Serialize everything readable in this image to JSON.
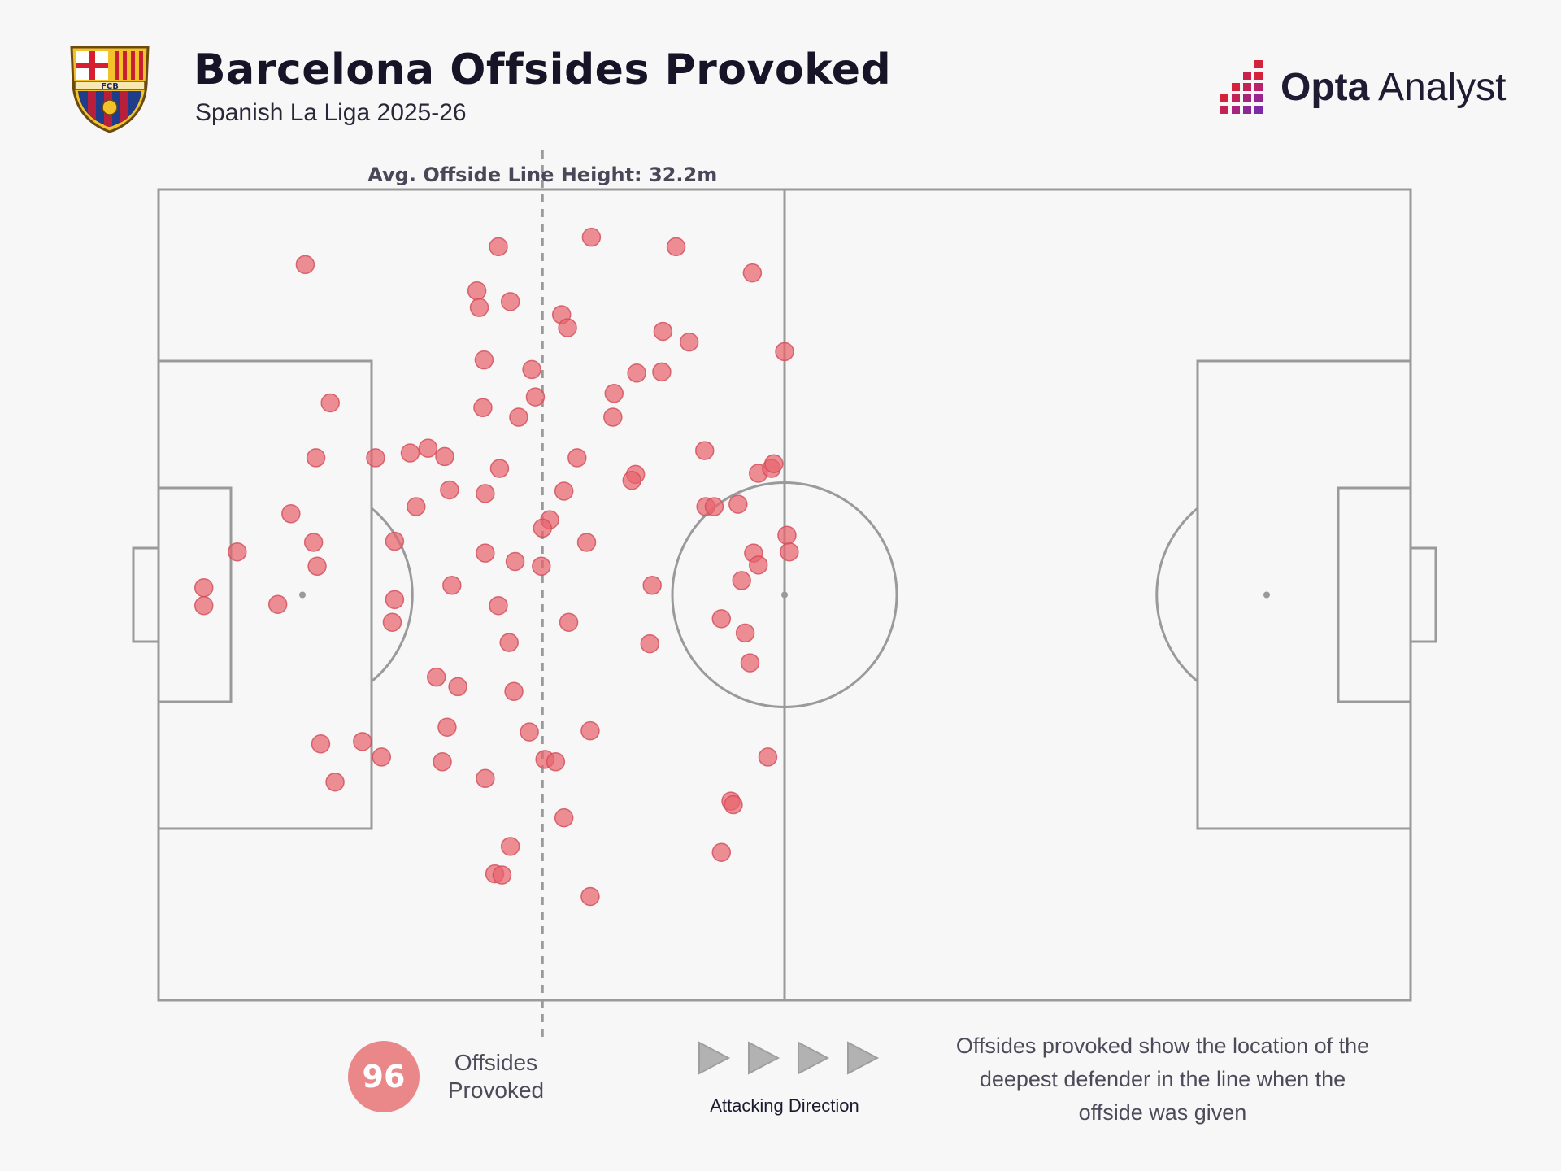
{
  "header": {
    "title": "Barcelona Offsides Provoked",
    "subtitle": "Spanish La Liga 2025-26",
    "crest_initials": "FCB",
    "brand_strong": "Opta",
    "brand_light": " Analyst"
  },
  "colors": {
    "marker": "#e8646e",
    "marker_stroke": "#d24b58",
    "pitch_line": "#9a9a9a",
    "badge": "#e98789",
    "arrow": "#b2b2b2"
  },
  "chart_data": {
    "type": "scatter",
    "title": "Barcelona Offsides Provoked",
    "subtitle": "Spanish La Liga 2025-26",
    "pitch_length_m": 105,
    "pitch_width_m": 68,
    "x_unit": "metres from own goal line",
    "y_unit": "metres from top touchline",
    "xlim": [
      0,
      105
    ],
    "ylim": [
      0,
      68
    ],
    "avg_line": {
      "x": 32.2,
      "label": "Avg. Offside Line Height: 32.2m"
    },
    "total": 96,
    "total_label": "Offsides Provoked",
    "direction_label": "Attacking Direction",
    "note": "Offsides provoked show the location of the deepest defender in the line when the offside was given",
    "points": [
      {
        "x": 12.3,
        "y": 6.3
      },
      {
        "x": 28.5,
        "y": 4.8
      },
      {
        "x": 36.3,
        "y": 4.0
      },
      {
        "x": 43.4,
        "y": 4.8
      },
      {
        "x": 49.8,
        "y": 7.0
      },
      {
        "x": 26.7,
        "y": 8.5
      },
      {
        "x": 29.5,
        "y": 9.4
      },
      {
        "x": 26.9,
        "y": 9.9
      },
      {
        "x": 33.8,
        "y": 10.5
      },
      {
        "x": 34.3,
        "y": 11.6
      },
      {
        "x": 42.3,
        "y": 11.9
      },
      {
        "x": 44.5,
        "y": 12.8
      },
      {
        "x": 52.5,
        "y": 13.6
      },
      {
        "x": 27.3,
        "y": 14.3
      },
      {
        "x": 31.3,
        "y": 15.1
      },
      {
        "x": 42.2,
        "y": 15.3
      },
      {
        "x": 40.1,
        "y": 15.4
      },
      {
        "x": 14.4,
        "y": 17.9
      },
      {
        "x": 31.6,
        "y": 17.4
      },
      {
        "x": 38.2,
        "y": 17.1
      },
      {
        "x": 27.2,
        "y": 18.3
      },
      {
        "x": 30.2,
        "y": 19.1
      },
      {
        "x": 38.1,
        "y": 19.1
      },
      {
        "x": 13.2,
        "y": 22.5
      },
      {
        "x": 18.2,
        "y": 22.5
      },
      {
        "x": 21.1,
        "y": 22.1
      },
      {
        "x": 22.6,
        "y": 21.7
      },
      {
        "x": 24.0,
        "y": 22.4
      },
      {
        "x": 28.6,
        "y": 23.4
      },
      {
        "x": 35.1,
        "y": 22.5
      },
      {
        "x": 45.8,
        "y": 21.9
      },
      {
        "x": 50.3,
        "y": 23.8
      },
      {
        "x": 51.4,
        "y": 23.4
      },
      {
        "x": 51.6,
        "y": 23.0
      },
      {
        "x": 40.0,
        "y": 23.9
      },
      {
        "x": 39.7,
        "y": 24.4
      },
      {
        "x": 24.4,
        "y": 25.2
      },
      {
        "x": 27.4,
        "y": 25.5
      },
      {
        "x": 34.0,
        "y": 25.3
      },
      {
        "x": 21.6,
        "y": 26.6
      },
      {
        "x": 11.1,
        "y": 27.2
      },
      {
        "x": 32.8,
        "y": 27.7
      },
      {
        "x": 45.9,
        "y": 26.6
      },
      {
        "x": 46.6,
        "y": 26.6
      },
      {
        "x": 48.6,
        "y": 26.4
      },
      {
        "x": 32.2,
        "y": 28.4
      },
      {
        "x": 19.8,
        "y": 29.5
      },
      {
        "x": 13.0,
        "y": 29.6
      },
      {
        "x": 35.9,
        "y": 29.6
      },
      {
        "x": 52.7,
        "y": 29.0
      },
      {
        "x": 52.9,
        "y": 30.4
      },
      {
        "x": 6.6,
        "y": 30.4
      },
      {
        "x": 27.4,
        "y": 30.5
      },
      {
        "x": 49.9,
        "y": 30.5
      },
      {
        "x": 13.3,
        "y": 31.6
      },
      {
        "x": 29.9,
        "y": 31.2
      },
      {
        "x": 32.1,
        "y": 31.6
      },
      {
        "x": 50.3,
        "y": 31.5
      },
      {
        "x": 3.8,
        "y": 33.4
      },
      {
        "x": 24.6,
        "y": 33.2
      },
      {
        "x": 41.4,
        "y": 33.2
      },
      {
        "x": 48.9,
        "y": 32.8
      },
      {
        "x": 19.8,
        "y": 34.4
      },
      {
        "x": 3.8,
        "y": 34.9
      },
      {
        "x": 10.0,
        "y": 34.8
      },
      {
        "x": 28.5,
        "y": 34.9
      },
      {
        "x": 19.6,
        "y": 36.3
      },
      {
        "x": 34.4,
        "y": 36.3
      },
      {
        "x": 47.2,
        "y": 36.0
      },
      {
        "x": 49.2,
        "y": 37.2
      },
      {
        "x": 29.4,
        "y": 38.0
      },
      {
        "x": 41.2,
        "y": 38.1
      },
      {
        "x": 49.6,
        "y": 39.7
      },
      {
        "x": 23.3,
        "y": 40.9
      },
      {
        "x": 25.1,
        "y": 41.7
      },
      {
        "x": 29.8,
        "y": 42.1
      },
      {
        "x": 24.2,
        "y": 45.1
      },
      {
        "x": 31.1,
        "y": 45.5
      },
      {
        "x": 36.2,
        "y": 45.4
      },
      {
        "x": 13.6,
        "y": 46.5
      },
      {
        "x": 17.1,
        "y": 46.3
      },
      {
        "x": 18.7,
        "y": 47.6
      },
      {
        "x": 23.8,
        "y": 48.0
      },
      {
        "x": 32.4,
        "y": 47.8
      },
      {
        "x": 33.3,
        "y": 48.0
      },
      {
        "x": 51.1,
        "y": 47.6
      },
      {
        "x": 27.4,
        "y": 49.4
      },
      {
        "x": 14.8,
        "y": 49.7
      },
      {
        "x": 48.0,
        "y": 51.3
      },
      {
        "x": 48.2,
        "y": 51.6
      },
      {
        "x": 34.0,
        "y": 52.7
      },
      {
        "x": 29.5,
        "y": 55.1
      },
      {
        "x": 47.2,
        "y": 55.6
      },
      {
        "x": 28.2,
        "y": 57.4
      },
      {
        "x": 28.8,
        "y": 57.5
      },
      {
        "x": 36.2,
        "y": 59.3
      }
    ]
  }
}
